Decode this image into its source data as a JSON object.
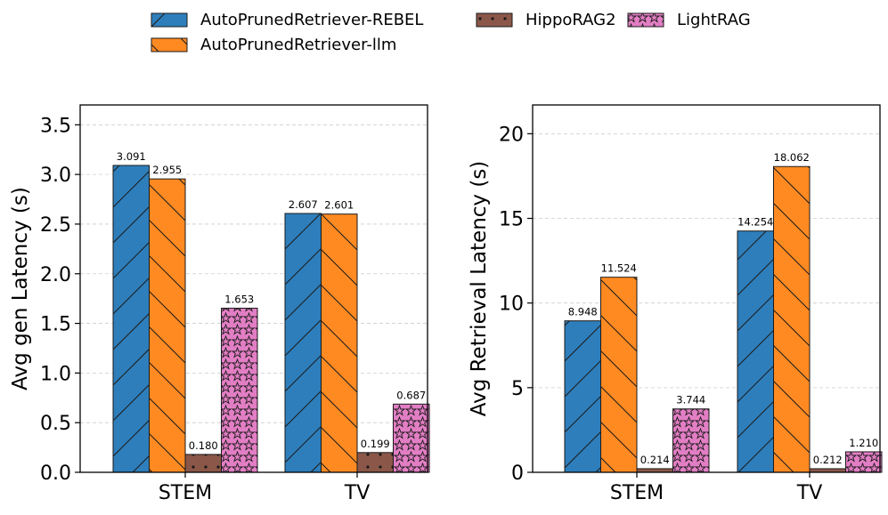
{
  "legend": {
    "items": [
      {
        "label": "AutoPrunedRetriever-REBEL",
        "color": "#2e7ebb",
        "pattern": "diag-forward"
      },
      {
        "label": "AutoPrunedRetriever-llm",
        "color": "#ff8a22",
        "pattern": "diag-back"
      },
      {
        "label": "HippoRAG2",
        "color": "#8b5749",
        "pattern": "dots"
      },
      {
        "label": "LightRAG",
        "color": "#e27ec4",
        "pattern": "stars"
      }
    ]
  },
  "chart_data": [
    {
      "type": "bar",
      "title": "",
      "xlabel": "",
      "ylabel": "Avg gen Latency (s)",
      "categories": [
        "STEM",
        "TV"
      ],
      "ylim": [
        0,
        3.7
      ],
      "yticks": [
        "0.0",
        "0.5",
        "1.0",
        "1.5",
        "2.0",
        "2.5",
        "3.0",
        "3.5"
      ],
      "ytick_values": [
        0,
        0.5,
        1.0,
        1.5,
        2.0,
        2.5,
        3.0,
        3.5
      ],
      "grid": true,
      "series": [
        {
          "name": "AutoPrunedRetriever-REBEL",
          "values": [
            3.091,
            2.607
          ],
          "labels": [
            "3.091",
            "2.607"
          ]
        },
        {
          "name": "AutoPrunedRetriever-llm",
          "values": [
            2.955,
            2.601
          ],
          "labels": [
            "2.955",
            "2.601"
          ]
        },
        {
          "name": "HippoRAG2",
          "values": [
            0.18,
            0.199
          ],
          "labels": [
            "0.180",
            "0.199"
          ]
        },
        {
          "name": "LightRAG",
          "values": [
            1.653,
            0.687
          ],
          "labels": [
            "1.653",
            "0.687"
          ]
        }
      ]
    },
    {
      "type": "bar",
      "title": "",
      "xlabel": "",
      "ylabel": "Avg Retrieval Latency (s)",
      "categories": [
        "STEM",
        "TV"
      ],
      "ylim": [
        0,
        21.7
      ],
      "yticks": [
        "0",
        "5",
        "10",
        "15",
        "20"
      ],
      "ytick_values": [
        0,
        5,
        10,
        15,
        20
      ],
      "grid": true,
      "series": [
        {
          "name": "AutoPrunedRetriever-REBEL",
          "values": [
            8.948,
            14.254
          ],
          "labels": [
            "8.948",
            "14.254"
          ]
        },
        {
          "name": "AutoPrunedRetriever-llm",
          "values": [
            11.524,
            18.062
          ],
          "labels": [
            "11.524",
            "18.062"
          ]
        },
        {
          "name": "HippoRAG2",
          "values": [
            0.214,
            0.212
          ],
          "labels": [
            "0.214",
            "0.212"
          ]
        },
        {
          "name": "LightRAG",
          "values": [
            3.744,
            1.21
          ],
          "labels": [
            "3.744",
            "1.210"
          ]
        }
      ]
    }
  ]
}
